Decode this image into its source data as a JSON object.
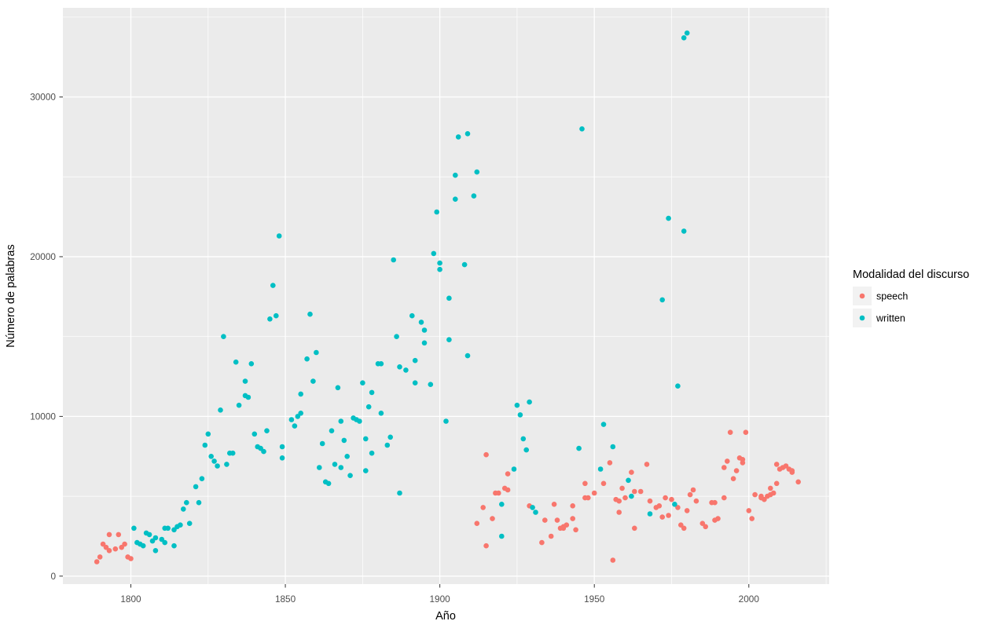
{
  "figure": {
    "background": "#ffffff",
    "panel_background": "#ebebeb",
    "grid_color": "#ffffff",
    "tick_mark_color": "#333333",
    "axis_text_color": "#4d4d4d",
    "axis_title_color": "#000000",
    "legend_key_background": "#f2f2f2"
  },
  "chart_data": {
    "type": "scatter",
    "title": "",
    "xlabel": "Año",
    "ylabel": "Número de palabras",
    "legend_title": "Modalidad del discurso",
    "legend_position": "right",
    "grid": true,
    "xlim": [
      1778,
      2026
    ],
    "ylim": [
      -500,
      35580
    ],
    "x_ticks": [
      1800,
      1850,
      1900,
      1950,
      2000
    ],
    "y_ticks": [
      0,
      10000,
      20000,
      30000
    ],
    "x_minor_ticks": [
      1825,
      1875,
      1925,
      1975,
      2025
    ],
    "y_minor_ticks": [
      5000,
      15000,
      25000,
      35000
    ],
    "point_radius": 3.3,
    "series": [
      {
        "name": "speech",
        "color": "#F8766D",
        "points": [
          [
            1789,
            900
          ],
          [
            1790,
            1200
          ],
          [
            1791,
            2000
          ],
          [
            1792,
            1800
          ],
          [
            1793,
            1600
          ],
          [
            1793,
            2600
          ],
          [
            1795,
            1700
          ],
          [
            1796,
            2600
          ],
          [
            1797,
            1800
          ],
          [
            1798,
            2000
          ],
          [
            1799,
            1200
          ],
          [
            1800,
            1100
          ],
          [
            1912,
            3300
          ],
          [
            1914,
            4300
          ],
          [
            1915,
            7600
          ],
          [
            1915,
            1900
          ],
          [
            1917,
            3600
          ],
          [
            1918,
            5200
          ],
          [
            1919,
            5200
          ],
          [
            1921,
            5500
          ],
          [
            1922,
            5400
          ],
          [
            1922,
            6400
          ],
          [
            1929,
            4400
          ],
          [
            1933,
            2100
          ],
          [
            1934,
            3500
          ],
          [
            1936,
            2500
          ],
          [
            1937,
            4500
          ],
          [
            1938,
            3500
          ],
          [
            1939,
            3000
          ],
          [
            1940,
            3000
          ],
          [
            1940,
            3100
          ],
          [
            1941,
            3200
          ],
          [
            1943,
            4400
          ],
          [
            1943,
            3600
          ],
          [
            1944,
            2900
          ],
          [
            1947,
            5800
          ],
          [
            1947,
            4900
          ],
          [
            1948,
            4900
          ],
          [
            1950,
            5200
          ],
          [
            1953,
            5800
          ],
          [
            1955,
            7100
          ],
          [
            1956,
            1000
          ],
          [
            1957,
            4800
          ],
          [
            1958,
            4700
          ],
          [
            1958,
            4000
          ],
          [
            1959,
            5500
          ],
          [
            1960,
            4900
          ],
          [
            1962,
            6500
          ],
          [
            1963,
            5300
          ],
          [
            1963,
            3000
          ],
          [
            1965,
            5300
          ],
          [
            1967,
            7000
          ],
          [
            1968,
            4700
          ],
          [
            1970,
            4300
          ],
          [
            1971,
            4400
          ],
          [
            1972,
            3700
          ],
          [
            1973,
            4900
          ],
          [
            1974,
            3800
          ],
          [
            1975,
            4800
          ],
          [
            1977,
            4300
          ],
          [
            1978,
            3200
          ],
          [
            1979,
            3000
          ],
          [
            1980,
            4100
          ],
          [
            1981,
            5100
          ],
          [
            1982,
            5400
          ],
          [
            1983,
            4700
          ],
          [
            1985,
            3300
          ],
          [
            1986,
            3100
          ],
          [
            1988,
            4600
          ],
          [
            1989,
            4600
          ],
          [
            1989,
            3500
          ],
          [
            1990,
            3600
          ],
          [
            1992,
            4900
          ],
          [
            1992,
            6800
          ],
          [
            1993,
            7200
          ],
          [
            1994,
            9000
          ],
          [
            1995,
            6100
          ],
          [
            1996,
            6600
          ],
          [
            1997,
            7400
          ],
          [
            1998,
            7100
          ],
          [
            1998,
            7300
          ],
          [
            1999,
            9000
          ],
          [
            2000,
            4100
          ],
          [
            2001,
            3600
          ],
          [
            2002,
            5100
          ],
          [
            2004,
            5000
          ],
          [
            2004,
            4900
          ],
          [
            2005,
            4800
          ],
          [
            2006,
            5000
          ],
          [
            2007,
            5100
          ],
          [
            2007,
            5500
          ],
          [
            2008,
            5200
          ],
          [
            2009,
            5800
          ],
          [
            2009,
            7000
          ],
          [
            2010,
            6700
          ],
          [
            2011,
            6800
          ],
          [
            2012,
            6900
          ],
          [
            2013,
            6700
          ],
          [
            2014,
            6600
          ],
          [
            2014,
            6500
          ],
          [
            2016,
            5900
          ]
        ]
      },
      {
        "name": "written",
        "color": "#00BFC4",
        "points": [
          [
            1801,
            3000
          ],
          [
            1802,
            2100
          ],
          [
            1803,
            2000
          ],
          [
            1804,
            1900
          ],
          [
            1805,
            2700
          ],
          [
            1806,
            2600
          ],
          [
            1807,
            2200
          ],
          [
            1808,
            2400
          ],
          [
            1808,
            1600
          ],
          [
            1810,
            2300
          ],
          [
            1811,
            2100
          ],
          [
            1811,
            3000
          ],
          [
            1812,
            3000
          ],
          [
            1814,
            2900
          ],
          [
            1814,
            1900
          ],
          [
            1815,
            3100
          ],
          [
            1816,
            3200
          ],
          [
            1817,
            4200
          ],
          [
            1818,
            4600
          ],
          [
            1819,
            3300
          ],
          [
            1821,
            5600
          ],
          [
            1822,
            4600
          ],
          [
            1823,
            6100
          ],
          [
            1824,
            8200
          ],
          [
            1825,
            8900
          ],
          [
            1826,
            7500
          ],
          [
            1827,
            7200
          ],
          [
            1828,
            6900
          ],
          [
            1829,
            10400
          ],
          [
            1830,
            15000
          ],
          [
            1831,
            7000
          ],
          [
            1832,
            7700
          ],
          [
            1833,
            7700
          ],
          [
            1834,
            13400
          ],
          [
            1835,
            10700
          ],
          [
            1837,
            12200
          ],
          [
            1837,
            11300
          ],
          [
            1838,
            11200
          ],
          [
            1839,
            13300
          ],
          [
            1840,
            8900
          ],
          [
            1841,
            8100
          ],
          [
            1842,
            8000
          ],
          [
            1843,
            7800
          ],
          [
            1844,
            9100
          ],
          [
            1845,
            16100
          ],
          [
            1846,
            18200
          ],
          [
            1847,
            16300
          ],
          [
            1848,
            21300
          ],
          [
            1849,
            8100
          ],
          [
            1849,
            7400
          ],
          [
            1852,
            9800
          ],
          [
            1853,
            9400
          ],
          [
            1854,
            10000
          ],
          [
            1855,
            10200
          ],
          [
            1855,
            11400
          ],
          [
            1857,
            13600
          ],
          [
            1858,
            16400
          ],
          [
            1859,
            12200
          ],
          [
            1860,
            14000
          ],
          [
            1861,
            6800
          ],
          [
            1862,
            8300
          ],
          [
            1863,
            5900
          ],
          [
            1864,
            5800
          ],
          [
            1865,
            9100
          ],
          [
            1866,
            7000
          ],
          [
            1867,
            11800
          ],
          [
            1868,
            9700
          ],
          [
            1868,
            6800
          ],
          [
            1869,
            8500
          ],
          [
            1870,
            7500
          ],
          [
            1871,
            6300
          ],
          [
            1872,
            9900
          ],
          [
            1873,
            9800
          ],
          [
            1874,
            9700
          ],
          [
            1875,
            12100
          ],
          [
            1876,
            6600
          ],
          [
            1876,
            8600
          ],
          [
            1877,
            10600
          ],
          [
            1878,
            11500
          ],
          [
            1878,
            7700
          ],
          [
            1880,
            13300
          ],
          [
            1881,
            13300
          ],
          [
            1881,
            10200
          ],
          [
            1883,
            8200
          ],
          [
            1884,
            8700
          ],
          [
            1885,
            19800
          ],
          [
            1886,
            15000
          ],
          [
            1887,
            13100
          ],
          [
            1887,
            5200
          ],
          [
            1889,
            12900
          ],
          [
            1891,
            16300
          ],
          [
            1892,
            13500
          ],
          [
            1892,
            12100
          ],
          [
            1894,
            15900
          ],
          [
            1895,
            15400
          ],
          [
            1895,
            14600
          ],
          [
            1897,
            12000
          ],
          [
            1898,
            20200
          ],
          [
            1899,
            22800
          ],
          [
            1900,
            19600
          ],
          [
            1900,
            19200
          ],
          [
            1902,
            9700
          ],
          [
            1903,
            14800
          ],
          [
            1903,
            17400
          ],
          [
            1905,
            23600
          ],
          [
            1905,
            25100
          ],
          [
            1906,
            27500
          ],
          [
            1908,
            19500
          ],
          [
            1909,
            27700
          ],
          [
            1909,
            13800
          ],
          [
            1911,
            23800
          ],
          [
            1912,
            25300
          ],
          [
            1920,
            4500
          ],
          [
            1920,
            2500
          ],
          [
            1924,
            6700
          ],
          [
            1925,
            10700
          ],
          [
            1926,
            10100
          ],
          [
            1927,
            8600
          ],
          [
            1928,
            7900
          ],
          [
            1929,
            10900
          ],
          [
            1930,
            4300
          ],
          [
            1931,
            4000
          ],
          [
            1945,
            8000
          ],
          [
            1946,
            28000
          ],
          [
            1952,
            6700
          ],
          [
            1953,
            9500
          ],
          [
            1956,
            8100
          ],
          [
            1961,
            6000
          ],
          [
            1962,
            5000
          ],
          [
            1968,
            3900
          ],
          [
            1972,
            17300
          ],
          [
            1974,
            22400
          ],
          [
            1976,
            4500
          ],
          [
            1977,
            11900
          ],
          [
            1979,
            21600
          ],
          [
            1979,
            33700
          ],
          [
            1980,
            34000
          ]
        ]
      }
    ]
  }
}
